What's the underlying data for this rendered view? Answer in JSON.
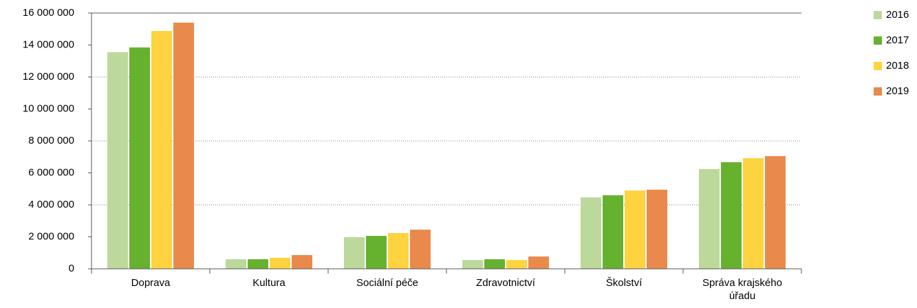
{
  "chart_data": {
    "type": "bar",
    "categories": [
      "Doprava",
      "Kultura",
      "Sociální péče",
      "Zdravotnictví",
      "Školství",
      "Správa krajského úřadu"
    ],
    "series": [
      {
        "name": "2016",
        "color": "#bcd99b",
        "values": [
          13550000,
          600000,
          1980000,
          550000,
          4470000,
          6240000
        ]
      },
      {
        "name": "2017",
        "color": "#66b22f",
        "values": [
          13850000,
          600000,
          2060000,
          600000,
          4600000,
          6670000
        ]
      },
      {
        "name": "2018",
        "color": "#fdd440",
        "values": [
          14880000,
          690000,
          2240000,
          550000,
          4900000,
          6920000
        ]
      },
      {
        "name": "2019",
        "color": "#e98a4c",
        "values": [
          15400000,
          860000,
          2450000,
          770000,
          4950000,
          7050000
        ]
      }
    ],
    "ylim": [
      0,
      16000000
    ],
    "yticks": [
      0,
      {
        "value": 2000000,
        "label": "2 000 000"
      },
      {
        "value": 4000000,
        "label": "4 000 000"
      },
      {
        "value": 6000000,
        "label": "6 000 000"
      },
      {
        "value": 8000000,
        "label": "8 000 000"
      },
      {
        "value": 10000000,
        "label": "10 000 000"
      },
      {
        "value": 12000000,
        "label": "12 000 000"
      },
      {
        "value": 14000000,
        "label": "14 000 000"
      },
      {
        "value": 16000000,
        "label": "16 000 000"
      }
    ],
    "grid": true,
    "legend": "right"
  }
}
